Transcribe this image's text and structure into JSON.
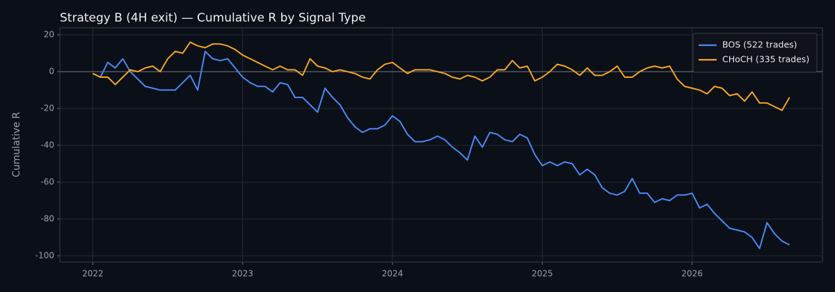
{
  "chart_data": {
    "type": "line",
    "title": "Strategy B (4H exit) — Cumulative R by Signal Type",
    "y_label": "Cumulative R",
    "x": [
      2022,
      2022.05,
      2022.1,
      2022.15,
      2022.2,
      2022.25,
      2022.3,
      2022.35,
      2022.4,
      2022.45,
      2022.5,
      2022.55,
      2022.6,
      2022.65,
      2022.7,
      2022.75,
      2022.8,
      2022.85,
      2022.9,
      2022.95,
      2023,
      2023.05,
      2023.1,
      2023.15,
      2023.2,
      2023.25,
      2023.3,
      2023.35,
      2023.4,
      2023.45,
      2023.5,
      2023.55,
      2023.6,
      2023.65,
      2023.7,
      2023.75,
      2023.8,
      2023.85,
      2023.9,
      2023.95,
      2024,
      2024.05,
      2024.1,
      2024.15,
      2024.2,
      2024.25,
      2024.3,
      2024.35,
      2024.4,
      2024.45,
      2024.5,
      2024.55,
      2024.6,
      2024.65,
      2024.7,
      2024.75,
      2024.8,
      2024.85,
      2024.9,
      2024.95,
      2025,
      2025.05,
      2025.1,
      2025.15,
      2025.2,
      2025.25,
      2025.3,
      2025.35,
      2025.4,
      2025.45,
      2025.5,
      2025.55,
      2025.6,
      2025.65,
      2025.7,
      2025.75,
      2025.8,
      2025.85,
      2025.9,
      2025.95,
      2026,
      2026.05,
      2026.1,
      2026.15,
      2026.2,
      2026.25,
      2026.3,
      2026.35,
      2026.4,
      2026.45,
      2026.5,
      2026.55,
      2026.6,
      2026.65
    ],
    "series": [
      {
        "name": "BOS (522 trades)",
        "color": "#4a8af4",
        "values": [
          -1,
          -3,
          5,
          2,
          7,
          0,
          -4,
          -8,
          -9,
          -10,
          -10,
          -10,
          -6,
          -2,
          -10,
          11,
          7,
          6,
          7,
          2,
          -3,
          -6,
          -8,
          -8,
          -11,
          -6,
          -7,
          -14,
          -14,
          -18,
          -22,
          -9,
          -14,
          -18,
          -25,
          -30,
          -33,
          -31,
          -31,
          -29,
          -24,
          -27,
          -34,
          -38,
          -38,
          -37,
          -35,
          -37,
          -41,
          -44,
          -48,
          -35,
          -41,
          -33,
          -34,
          -37,
          -38,
          -34,
          -36,
          -45,
          -51,
          -49,
          -51,
          -49,
          -50,
          -56,
          -53,
          -56,
          -63,
          -66,
          -67,
          -65,
          -58,
          -66,
          -66,
          -71,
          -69,
          -70,
          -67,
          -67,
          -66,
          -74,
          -72,
          -77,
          -81,
          -85,
          -86,
          -87,
          -90,
          -96,
          -82,
          -88,
          -92,
          -94
        ]
      },
      {
        "name": "CHoCH (335 trades)",
        "color": "#f5a623",
        "values": [
          -1,
          -3,
          -3,
          -7,
          -3,
          1,
          0,
          2,
          3,
          0,
          7,
          11,
          10,
          16,
          14,
          13,
          15,
          15,
          14,
          12,
          9,
          7,
          5,
          3,
          1,
          3,
          1,
          1,
          -2,
          7,
          3,
          2,
          0,
          1,
          0,
          -1,
          -3,
          -4,
          1,
          4,
          5,
          2,
          -1,
          1,
          1,
          1,
          0,
          -1,
          -3,
          -4,
          -2,
          -3,
          -5,
          -3,
          1,
          1,
          6,
          2,
          3,
          -5,
          -3,
          0,
          4,
          3,
          1,
          -2,
          2,
          -2,
          -2,
          0,
          3,
          -3,
          -3,
          0,
          2,
          3,
          2,
          3,
          -4,
          -8,
          -9,
          -10,
          -12,
          -8,
          -9,
          -13,
          -12,
          -16,
          -11,
          -17,
          -17,
          -19,
          -21,
          -14
        ]
      }
    ],
    "xlim": [
      2021.78,
      2026.87
    ],
    "xticks": [
      2022,
      2023,
      2024,
      2025,
      2026
    ],
    "ylim": [
      -103.4,
      23.8
    ],
    "yticks": [
      -100,
      -80,
      -60,
      -40,
      -20,
      0,
      20
    ],
    "hline": 0,
    "grid": true,
    "legend": "upper right"
  }
}
